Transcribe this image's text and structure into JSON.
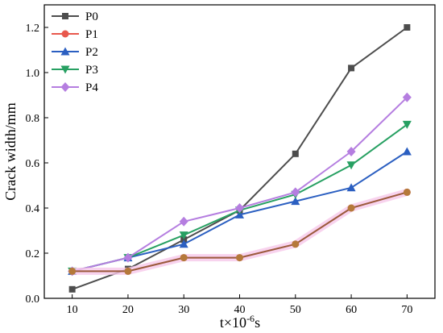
{
  "chart_data": {
    "type": "line",
    "xlabel_base": "t×10",
    "xlabel_exp": "-6",
    "xlabel_unit": "s",
    "ylabel": "Crack width/mm",
    "xlim": [
      5,
      75
    ],
    "ylim": [
      0,
      1.3
    ],
    "xticks": [
      10,
      20,
      30,
      40,
      50,
      60,
      70
    ],
    "yticks": [
      0.0,
      0.2,
      0.4,
      0.6,
      0.8,
      1.0,
      1.2
    ],
    "ytick_labels": [
      "0.0",
      "0.2",
      "0.4",
      "0.6",
      "0.8",
      "1.0",
      "1.2"
    ],
    "x": [
      10,
      20,
      30,
      40,
      50,
      60,
      70
    ],
    "legend_position": "top-left",
    "grid": false,
    "series": [
      {
        "name": "P0",
        "color": "#4d4d4d",
        "marker": "square",
        "values": [
          0.04,
          0.13,
          0.26,
          0.39,
          0.64,
          1.02,
          1.2
        ]
      },
      {
        "name": "P1",
        "color": "#e8584d",
        "marker": "circle",
        "values": [
          0.12,
          0.12,
          0.18,
          0.18,
          0.24,
          0.4,
          0.47
        ]
      },
      {
        "name": "P2",
        "color": "#2b5fc1",
        "marker": "triangle",
        "values": [
          0.12,
          0.18,
          0.24,
          0.37,
          0.43,
          0.49,
          0.65
        ]
      },
      {
        "name": "P3",
        "color": "#27a062",
        "marker": "triangle-down",
        "values": [
          0.12,
          0.18,
          0.28,
          0.39,
          0.46,
          0.59,
          0.77
        ]
      },
      {
        "name": "P4",
        "color": "#b57ee0",
        "marker": "diamond",
        "values": [
          0.12,
          0.18,
          0.34,
          0.4,
          0.47,
          0.65,
          0.89
        ]
      }
    ],
    "overlay_series": {
      "color": "#9b5a3c",
      "halo_color": "#f6c8ea",
      "marker_color": "#b5793a",
      "values": [
        0.12,
        0.12,
        0.18,
        0.18,
        0.24,
        0.4,
        0.47
      ]
    }
  }
}
